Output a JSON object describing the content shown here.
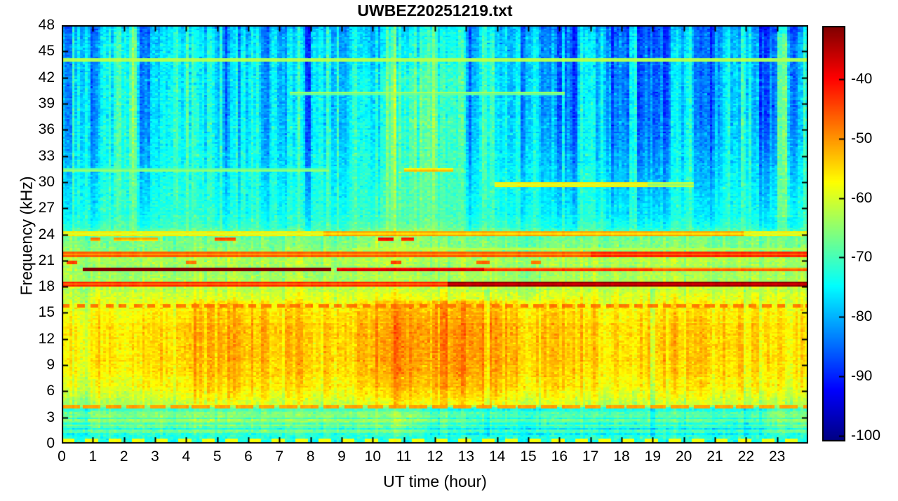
{
  "chart_data": {
    "type": "heatmap",
    "subtype": "spectrogram",
    "title": "UWBEZ20251219.txt",
    "xlabel": "UT time (hour)",
    "ylabel": "Frequency (kHz)",
    "x_range": [
      0,
      24
    ],
    "y_range": [
      0,
      48
    ],
    "x_ticks": [
      0,
      1,
      2,
      3,
      4,
      5,
      6,
      7,
      8,
      9,
      10,
      11,
      12,
      13,
      14,
      15,
      16,
      17,
      18,
      19,
      20,
      21,
      22,
      23
    ],
    "y_ticks": [
      0,
      3,
      6,
      9,
      12,
      15,
      18,
      21,
      24,
      27,
      30,
      33,
      36,
      39,
      42,
      45,
      48
    ],
    "grid_on": false,
    "colorbar": {
      "colormap": "jet",
      "vmin": -101,
      "vmax": -31,
      "ticks": [
        -40,
        -50,
        -60,
        -70,
        -80,
        -90,
        -100
      ],
      "position": "right"
    },
    "grid": {
      "cols": 288,
      "rows": 240,
      "seed": 20251219
    },
    "base_profile_db": [
      [
        0,
        -88
      ],
      [
        0.18,
        -86
      ],
      [
        0.3,
        -73
      ],
      [
        0.9,
        -73
      ],
      [
        2.0,
        -71
      ],
      [
        3.9,
        -69
      ],
      [
        4.45,
        -62
      ],
      [
        5.2,
        -60.5
      ],
      [
        6.5,
        -58
      ],
      [
        8,
        -56.5
      ],
      [
        10,
        -55.5
      ],
      [
        13,
        -55.5
      ],
      [
        15,
        -56.5
      ],
      [
        16.3,
        -58.5
      ],
      [
        17.2,
        -60.5
      ],
      [
        18.0,
        -62
      ],
      [
        19.0,
        -63.5
      ],
      [
        20.5,
        -63.5
      ],
      [
        21.3,
        -63
      ],
      [
        22.2,
        -65.5
      ],
      [
        23.2,
        -66.5
      ],
      [
        24.0,
        -68
      ],
      [
        24.6,
        -70
      ],
      [
        26,
        -72.5
      ],
      [
        29,
        -73.5
      ],
      [
        33,
        -74.5
      ],
      [
        37,
        -75.5
      ],
      [
        41,
        -76
      ],
      [
        45,
        -76.5
      ],
      [
        47,
        -77.5
      ],
      [
        48,
        -80
      ]
    ],
    "row_stripes": [
      {
        "f": 1.35,
        "hb": 0.12,
        "a": 4.5
      },
      {
        "f": 2.0,
        "hb": 0.12,
        "a": 4.5
      },
      {
        "f": 2.65,
        "hb": 0.12,
        "a": 4.5
      },
      {
        "f": 3.3,
        "hb": 0.12,
        "a": 4.5
      }
    ],
    "time_bumps": [
      {
        "band": [
          4.4,
          16.3
        ],
        "c": 12.7,
        "w": 5.6,
        "a": 5.5
      },
      {
        "band": [
          4.4,
          16.3
        ],
        "c": 5.6,
        "w": 3.8,
        "a": 3.2
      },
      {
        "band": [
          4.4,
          16.3
        ],
        "c": 21.0,
        "w": 2.6,
        "a": 1.5
      },
      {
        "band": [
          21.9,
          43
        ],
        "c": 11.0,
        "w": 2.6,
        "a": 2.5
      },
      {
        "band": [
          26,
          47
        ],
        "c": 23.2,
        "w": 1.2,
        "a": 3
      },
      {
        "band": [
          0.9,
          4.1
        ],
        "t0": 11.55,
        "t1": 22.85,
        "s": 0.4,
        "a": -3.5
      }
    ],
    "column_events": {
      "hi": [
        [
          0.0,
          0.3,
          -7
        ],
        [
          0.55,
          0.75,
          -6
        ],
        [
          0.95,
          1.2,
          -8
        ],
        [
          2.55,
          2.8,
          -7
        ],
        [
          5.15,
          5.4,
          -7
        ],
        [
          6.5,
          6.65,
          -6
        ],
        [
          7.8,
          8.05,
          -7
        ],
        [
          9.0,
          9.2,
          -7
        ],
        [
          13.1,
          13.3,
          -6
        ],
        [
          14.7,
          15.05,
          -7
        ],
        [
          15.45,
          16.6,
          -8
        ],
        [
          17.4,
          18.25,
          -8
        ],
        [
          18.5,
          19.6,
          -9
        ],
        [
          20.3,
          21.15,
          -8
        ],
        [
          22.4,
          23.0,
          -9
        ],
        [
          23.35,
          23.75,
          -7
        ],
        [
          1.95,
          2.4,
          4
        ],
        [
          3.6,
          4.6,
          3
        ],
        [
          10.45,
          12.9,
          3
        ],
        [
          22.95,
          23.3,
          4
        ]
      ],
      "hi_band": [
        24.5,
        48
      ],
      "lo": [
        [
          13.55,
          13.72,
          -4
        ],
        [
          18.9,
          19.06,
          -4
        ],
        [
          21.9,
          22.06,
          -3
        ],
        [
          0.0,
          0.85,
          -2.5
        ],
        [
          10.6,
          10.9,
          2
        ],
        [
          12.2,
          12.5,
          2
        ]
      ],
      "lo_band": [
        0.8,
        17.8
      ]
    },
    "noise": {
      "cell_upper": 1.7,
      "cell_lower": 1.4,
      "col_upper": 3.2,
      "col_lower": 1.8,
      "row_lower": 1.1,
      "row_upper": 0.45,
      "band_split": 24.5
    },
    "tonals": [
      {
        "f": 44.0,
        "hb": 0.12,
        "segs": [
          [
            0,
            24,
            -67
          ]
        ]
      },
      {
        "f": 40.1,
        "hb": 0.1,
        "segs": [
          [
            7.3,
            16.2,
            -68
          ]
        ]
      },
      {
        "f": 31.45,
        "hb": 0.1,
        "segs": [
          [
            0,
            8.6,
            -69
          ],
          [
            11.0,
            12.55,
            -57
          ]
        ]
      },
      {
        "f": 29.7,
        "hb": 0.12,
        "segs": [
          [
            13.9,
            18.8,
            -60
          ],
          [
            18.8,
            20.3,
            -65
          ]
        ]
      },
      {
        "f": 24.1,
        "hb": 0.12,
        "segs": [
          [
            0,
            8.4,
            -60
          ],
          [
            8.4,
            21.9,
            -55
          ],
          [
            21.9,
            24,
            -60
          ]
        ]
      },
      {
        "f": 23.35,
        "hb": 0.1,
        "segs": [
          [
            0.9,
            1.25,
            -51
          ],
          [
            1.7,
            3.1,
            -55
          ],
          [
            4.95,
            5.55,
            -48
          ],
          [
            10.15,
            10.7,
            -43
          ],
          [
            10.9,
            11.35,
            -45
          ]
        ]
      },
      {
        "f": 22.3,
        "hb": 0.08,
        "segs": [
          [
            9.3,
            24,
            -62
          ]
        ]
      },
      {
        "f": 21.7,
        "hb": 0.12,
        "segs": [
          [
            0,
            17,
            -50
          ],
          [
            17,
            24,
            -46
          ]
        ]
      },
      {
        "f": 20.85,
        "hb": 0.09,
        "segs": [
          [
            0.15,
            0.5,
            -48
          ],
          [
            4.0,
            4.35,
            -52
          ],
          [
            10.55,
            10.95,
            -49
          ],
          [
            13.3,
            13.75,
            -51
          ],
          [
            15.1,
            15.45,
            -52
          ]
        ]
      },
      {
        "f": 20.0,
        "hb": 0.17,
        "segs": [
          [
            0.65,
            8.7,
            -33
          ]
        ]
      },
      {
        "f": 20.05,
        "hb": 0.11,
        "segs": [
          [
            8.85,
            13.6,
            -41
          ],
          [
            13.6,
            19.0,
            -47
          ],
          [
            19.0,
            24,
            -50
          ]
        ]
      },
      {
        "f": 18.3,
        "hb": 0.14,
        "segs": [
          [
            0,
            12.4,
            -46
          ],
          [
            12.4,
            24,
            -36
          ]
        ]
      },
      {
        "f": 15.85,
        "hb": 0.08,
        "dash": [
          0.28,
          0.18
        ],
        "segs": [
          [
            0,
            24,
            -52
          ]
        ]
      },
      {
        "f": 4.2,
        "hb": 0.1,
        "dash": [
          0.55,
          0.15
        ],
        "segs": [
          [
            0,
            24,
            -55
          ]
        ]
      },
      {
        "f": 0.45,
        "hb": 0.09,
        "dash": [
          0.45,
          0.3
        ],
        "segs": [
          [
            0,
            24,
            -62
          ]
        ]
      }
    ],
    "colors": {
      "background": "#ffffff",
      "text": "#000000",
      "axis": "#000000"
    }
  }
}
